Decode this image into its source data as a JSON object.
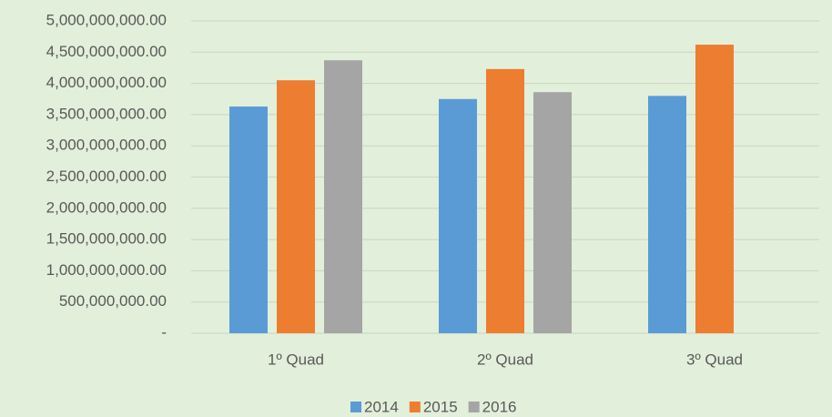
{
  "chart_data": {
    "type": "bar",
    "categories": [
      "1º Quad",
      "2º Quad",
      "3º Quad"
    ],
    "series": [
      {
        "name": "2014",
        "color": "#5b9bd5",
        "values": [
          3630000000,
          3750000000,
          3800000000
        ]
      },
      {
        "name": "2015",
        "color": "#ed7d31",
        "values": [
          4050000000,
          4230000000,
          4620000000
        ]
      },
      {
        "name": "2016",
        "color": "#a5a5a5",
        "values": [
          4370000000,
          3860000000,
          null
        ]
      }
    ],
    "ylim": [
      0,
      5000000000
    ],
    "yticks": [
      {
        "value": 0,
        "label": "-"
      },
      {
        "value": 500000000,
        "label": "500,000,000.00"
      },
      {
        "value": 1000000000,
        "label": "1,000,000,000.00"
      },
      {
        "value": 1500000000,
        "label": "1,500,000,000.00"
      },
      {
        "value": 2000000000,
        "label": "2,000,000,000.00"
      },
      {
        "value": 2500000000,
        "label": "2,500,000,000.00"
      },
      {
        "value": 3000000000,
        "label": "3,000,000,000.00"
      },
      {
        "value": 3500000000,
        "label": "3,500,000,000.00"
      },
      {
        "value": 4000000000,
        "label": "4,000,000,000.00"
      },
      {
        "value": 4500000000,
        "label": "4,500,000,000.00"
      },
      {
        "value": 5000000000,
        "label": "5,000,000,000.00"
      }
    ],
    "grid": true,
    "legend": "bottom"
  }
}
